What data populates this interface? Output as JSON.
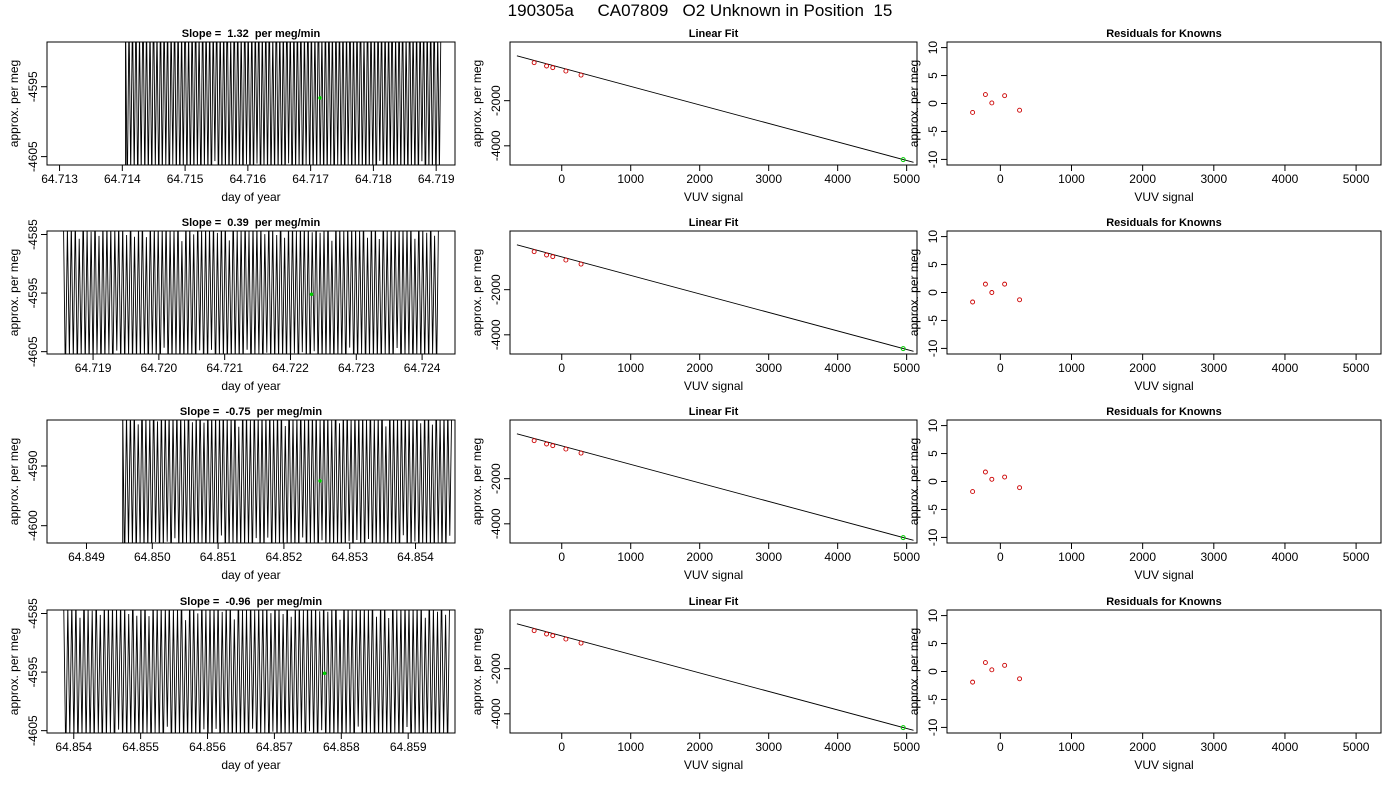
{
  "title": "190305a     CA07809   O2 Unknown in Position  15",
  "colors": {
    "trace": "#000000",
    "fit_line": "#000000",
    "knowns": "#cc0000",
    "unknown": "#00cc00"
  },
  "chart_data": [
    {
      "type": "line",
      "title": "Slope =  1.32  per meg/min",
      "xlabel": "day of year",
      "ylabel": "approx. per meg",
      "xlim": [
        64.7128,
        64.7193
      ],
      "ylim": [
        -4606.2,
        -4588.6
      ],
      "xticks": [
        "64.713",
        "64.714",
        "64.715",
        "64.716",
        "64.717",
        "64.718",
        "64.719"
      ],
      "yticks": [
        "-4595",
        "-4605"
      ],
      "trace": {
        "flat_start": 64.7128,
        "start": 64.71405,
        "end": 64.71908,
        "center": -4596.5,
        "amplitude": 12,
        "cycles": 90,
        "base": -4612
      },
      "marker": {
        "x": 64.71715,
        "y": -4596.6
      }
    },
    {
      "type": "scatter",
      "title": "Linear Fit",
      "xlabel": "VUV signal",
      "ylabel": "approx. per meg",
      "xlim": [
        -750,
        5150
      ],
      "ylim": [
        -4850,
        600
      ],
      "xticks": [
        "0",
        "1000",
        "2000",
        "3000",
        "4000",
        "5000"
      ],
      "yticks": [
        "-2000",
        "-4000"
      ],
      "fit_line": {
        "x": [
          -650,
          5100
        ],
        "y": [
          -13,
          -4732
        ]
      },
      "knowns": {
        "x": [
          -400,
          -220,
          -130,
          60,
          280
        ],
        "y": [
          -316,
          -463,
          -535,
          -688,
          -867
        ]
      },
      "unknown": {
        "x": 4950,
        "y": -4611
      }
    },
    {
      "type": "scatter",
      "title": "Residuals for Knowns",
      "xlabel": "VUV signal",
      "ylabel": "approx. per meg",
      "xlim": [
        -750,
        5350
      ],
      "ylim": [
        -11,
        11
      ],
      "xticks": [
        "0",
        "1000",
        "2000",
        "3000",
        "4000",
        "5000"
      ],
      "yticks": [
        "-10",
        "-5",
        "0",
        "5",
        "10"
      ],
      "knowns": {
        "x": [
          -390,
          -210,
          -120,
          60,
          270
        ],
        "y": [
          -1.6,
          1.6,
          0.1,
          1.4,
          -1.2
        ]
      }
    },
    {
      "type": "line",
      "title": "Slope =  0.39  per meg/min",
      "xlabel": "day of year",
      "ylabel": "approx. per meg",
      "xlim": [
        64.7183,
        64.7245
      ],
      "ylim": [
        -4605.4,
        -4584.4
      ],
      "xticks": [
        "64.719",
        "64.720",
        "64.721",
        "64.722",
        "64.723",
        "64.724"
      ],
      "yticks": [
        "-4585",
        "-4595",
        "-4605"
      ],
      "trace": {
        "flat_start": null,
        "start": 64.71855,
        "end": 64.72425,
        "center": -4595.2,
        "amplitude": 12,
        "cycles": 95,
        "base": null
      },
      "marker": {
        "x": 64.72232,
        "y": -4595.2
      }
    },
    {
      "type": "scatter",
      "title": "Linear Fit",
      "xlabel": "VUV signal",
      "ylabel": "approx. per meg",
      "xlim": [
        -750,
        5150
      ],
      "ylim": [
        -4850,
        600
      ],
      "xticks": [
        "0",
        "1000",
        "2000",
        "3000",
        "4000",
        "5000"
      ],
      "yticks": [
        "-2000",
        "-4000"
      ],
      "fit_line": {
        "x": [
          -650,
          5100
        ],
        "y": [
          -13,
          -4732
        ]
      },
      "knowns": {
        "x": [
          -400,
          -220,
          -130,
          60,
          280
        ],
        "y": [
          -316,
          -463,
          -535,
          -688,
          -867
        ]
      },
      "unknown": {
        "x": 4950,
        "y": -4611
      }
    },
    {
      "type": "scatter",
      "title": "Residuals for Knowns",
      "xlabel": "VUV signal",
      "ylabel": "approx. per meg",
      "xlim": [
        -750,
        5350
      ],
      "ylim": [
        -11,
        11
      ],
      "xticks": [
        "0",
        "1000",
        "2000",
        "3000",
        "4000",
        "5000"
      ],
      "yticks": [
        "-10",
        "-5",
        "0",
        "5",
        "10"
      ],
      "knowns": {
        "x": [
          -390,
          -210,
          -120,
          60,
          270
        ],
        "y": [
          -1.7,
          1.5,
          0.0,
          1.5,
          -1.3
        ]
      }
    },
    {
      "type": "line",
      "title": "Slope =  -0.75  per meg/min",
      "xlabel": "day of year",
      "ylabel": "approx. per meg",
      "xlim": [
        64.8484,
        64.8546
      ],
      "ylim": [
        -4602.9,
        -4582.3
      ],
      "xticks": [
        "64.849",
        "64.850",
        "64.851",
        "64.852",
        "64.853",
        "64.854"
      ],
      "yticks": [
        "-4590",
        "-4600"
      ],
      "trace": {
        "flat_start": 64.8484,
        "start": 64.84955,
        "end": 64.85455,
        "center": -4592.5,
        "amplitude": 12,
        "cycles": 85,
        "base": -4608
      },
      "marker": {
        "x": 64.85255,
        "y": -4592.5
      }
    },
    {
      "type": "scatter",
      "title": "Linear Fit",
      "xlabel": "VUV signal",
      "ylabel": "approx. per meg",
      "xlim": [
        -750,
        5150
      ],
      "ylim": [
        -4850,
        600
      ],
      "xticks": [
        "0",
        "1000",
        "2000",
        "3000",
        "4000",
        "5000"
      ],
      "yticks": [
        "-2000",
        "-4000"
      ],
      "fit_line": {
        "x": [
          -650,
          5100
        ],
        "y": [
          -13,
          -4732
        ]
      },
      "knowns": {
        "x": [
          -400,
          -220,
          -130,
          60,
          280
        ],
        "y": [
          -316,
          -463,
          -535,
          -688,
          -867
        ]
      },
      "unknown": {
        "x": 4950,
        "y": -4611
      }
    },
    {
      "type": "scatter",
      "title": "Residuals for Knowns",
      "xlabel": "VUV signal",
      "ylabel": "approx. per meg",
      "xlim": [
        -750,
        5350
      ],
      "ylim": [
        -11,
        11
      ],
      "xticks": [
        "0",
        "1000",
        "2000",
        "3000",
        "4000",
        "5000"
      ],
      "yticks": [
        "-10",
        "-5",
        "0",
        "5",
        "10"
      ],
      "knowns": {
        "x": [
          -390,
          -210,
          -120,
          60,
          270
        ],
        "y": [
          -1.8,
          1.7,
          0.4,
          0.8,
          -1.1
        ]
      }
    },
    {
      "type": "line",
      "title": "Slope =  -0.96  per meg/min",
      "xlabel": "day of year",
      "ylabel": "approx. per meg",
      "xlim": [
        64.8536,
        64.8597
      ],
      "ylim": [
        -4605.4,
        -4584.4
      ],
      "xticks": [
        "64.854",
        "64.855",
        "64.856",
        "64.857",
        "64.858",
        "64.859"
      ],
      "yticks": [
        "-4585",
        "-4595",
        "-4605"
      ],
      "trace": {
        "flat_start": null,
        "start": 64.85385,
        "end": 64.85962,
        "center": -4595.2,
        "amplitude": 12,
        "cycles": 95,
        "base": null
      },
      "marker": {
        "x": 64.85775,
        "y": -4595.2
      }
    },
    {
      "type": "scatter",
      "title": "Linear Fit",
      "xlabel": "VUV signal",
      "ylabel": "approx. per meg",
      "xlim": [
        -750,
        5150
      ],
      "ylim": [
        -4850,
        600
      ],
      "xticks": [
        "0",
        "1000",
        "2000",
        "3000",
        "4000",
        "5000"
      ],
      "yticks": [
        "-2000",
        "-4000"
      ],
      "fit_line": {
        "x": [
          -650,
          5100
        ],
        "y": [
          -13,
          -4732
        ]
      },
      "knowns": {
        "x": [
          -400,
          -220,
          -130,
          60,
          280
        ],
        "y": [
          -316,
          -463,
          -535,
          -688,
          -867
        ]
      },
      "unknown": {
        "x": 4950,
        "y": -4611
      }
    },
    {
      "type": "scatter",
      "title": "Residuals for Knowns",
      "xlabel": "VUV signal",
      "ylabel": "approx. per meg",
      "xlim": [
        -750,
        5350
      ],
      "ylim": [
        -11,
        11
      ],
      "xticks": [
        "0",
        "1000",
        "2000",
        "3000",
        "4000",
        "5000"
      ],
      "yticks": [
        "-10",
        "-5",
        "0",
        "5",
        "10"
      ],
      "knowns": {
        "x": [
          -390,
          -210,
          -120,
          60,
          270
        ],
        "y": [
          -1.9,
          1.6,
          0.3,
          1.1,
          -1.3
        ]
      }
    }
  ]
}
